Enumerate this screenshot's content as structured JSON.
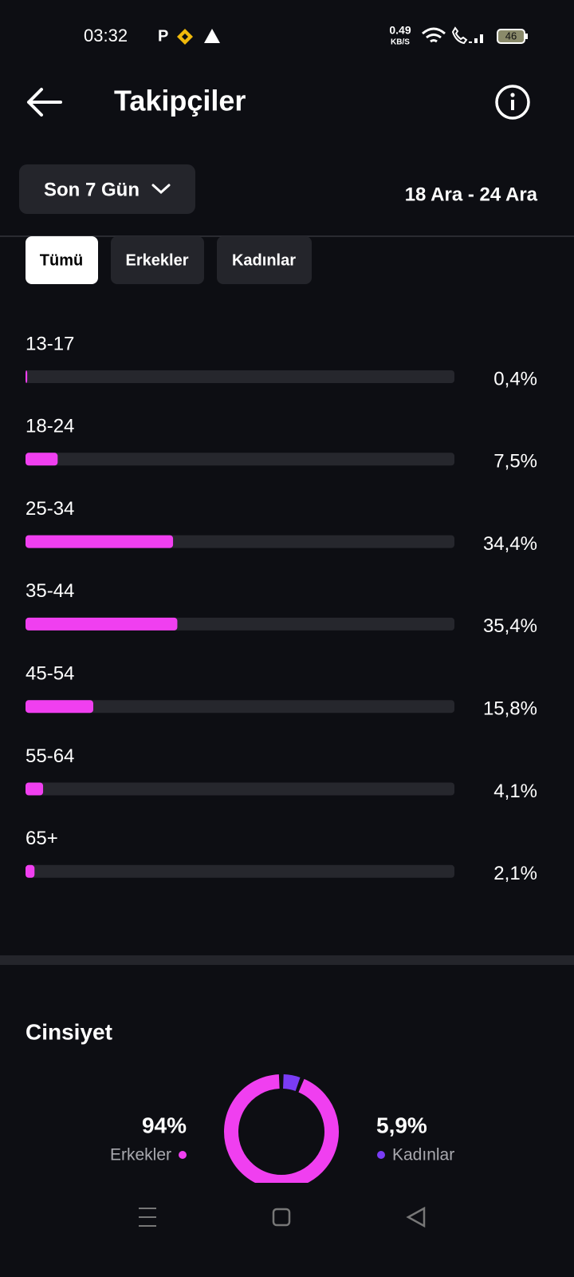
{
  "status_bar": {
    "time": "03:32",
    "speed": "0.49",
    "speed_unit": "KB/S",
    "battery": "46"
  },
  "header": {
    "title": "Takipçiler"
  },
  "filter": {
    "period": "Son 7 Gün",
    "date_range": "18 Ara - 24 Ara"
  },
  "tabs": [
    "Tümü",
    "Erkekler",
    "Kadınlar"
  ],
  "age_chart": {
    "type": "bar",
    "categories": [
      "13-17",
      "18-24",
      "25-34",
      "35-44",
      "45-54",
      "55-64",
      "65+"
    ],
    "values": [
      0.4,
      7.5,
      34.4,
      35.4,
      15.8,
      4.1,
      2.1
    ],
    "value_labels": [
      "0,4%",
      "7,5%",
      "34,4%",
      "35,4%",
      "15,8%",
      "4,1%",
      "2,1%"
    ],
    "xlim": [
      0,
      100
    ],
    "color": "#f03ff0",
    "track_color": "#26272d"
  },
  "gender": {
    "type": "pie",
    "title": "Cinsiyet",
    "categories": [
      "Erkekler",
      "Kadınlar"
    ],
    "values": [
      94,
      5.9
    ],
    "value_labels": [
      "94%",
      "5,9%"
    ],
    "colors": [
      "#f03ff0",
      "#7a3cf5"
    ]
  }
}
